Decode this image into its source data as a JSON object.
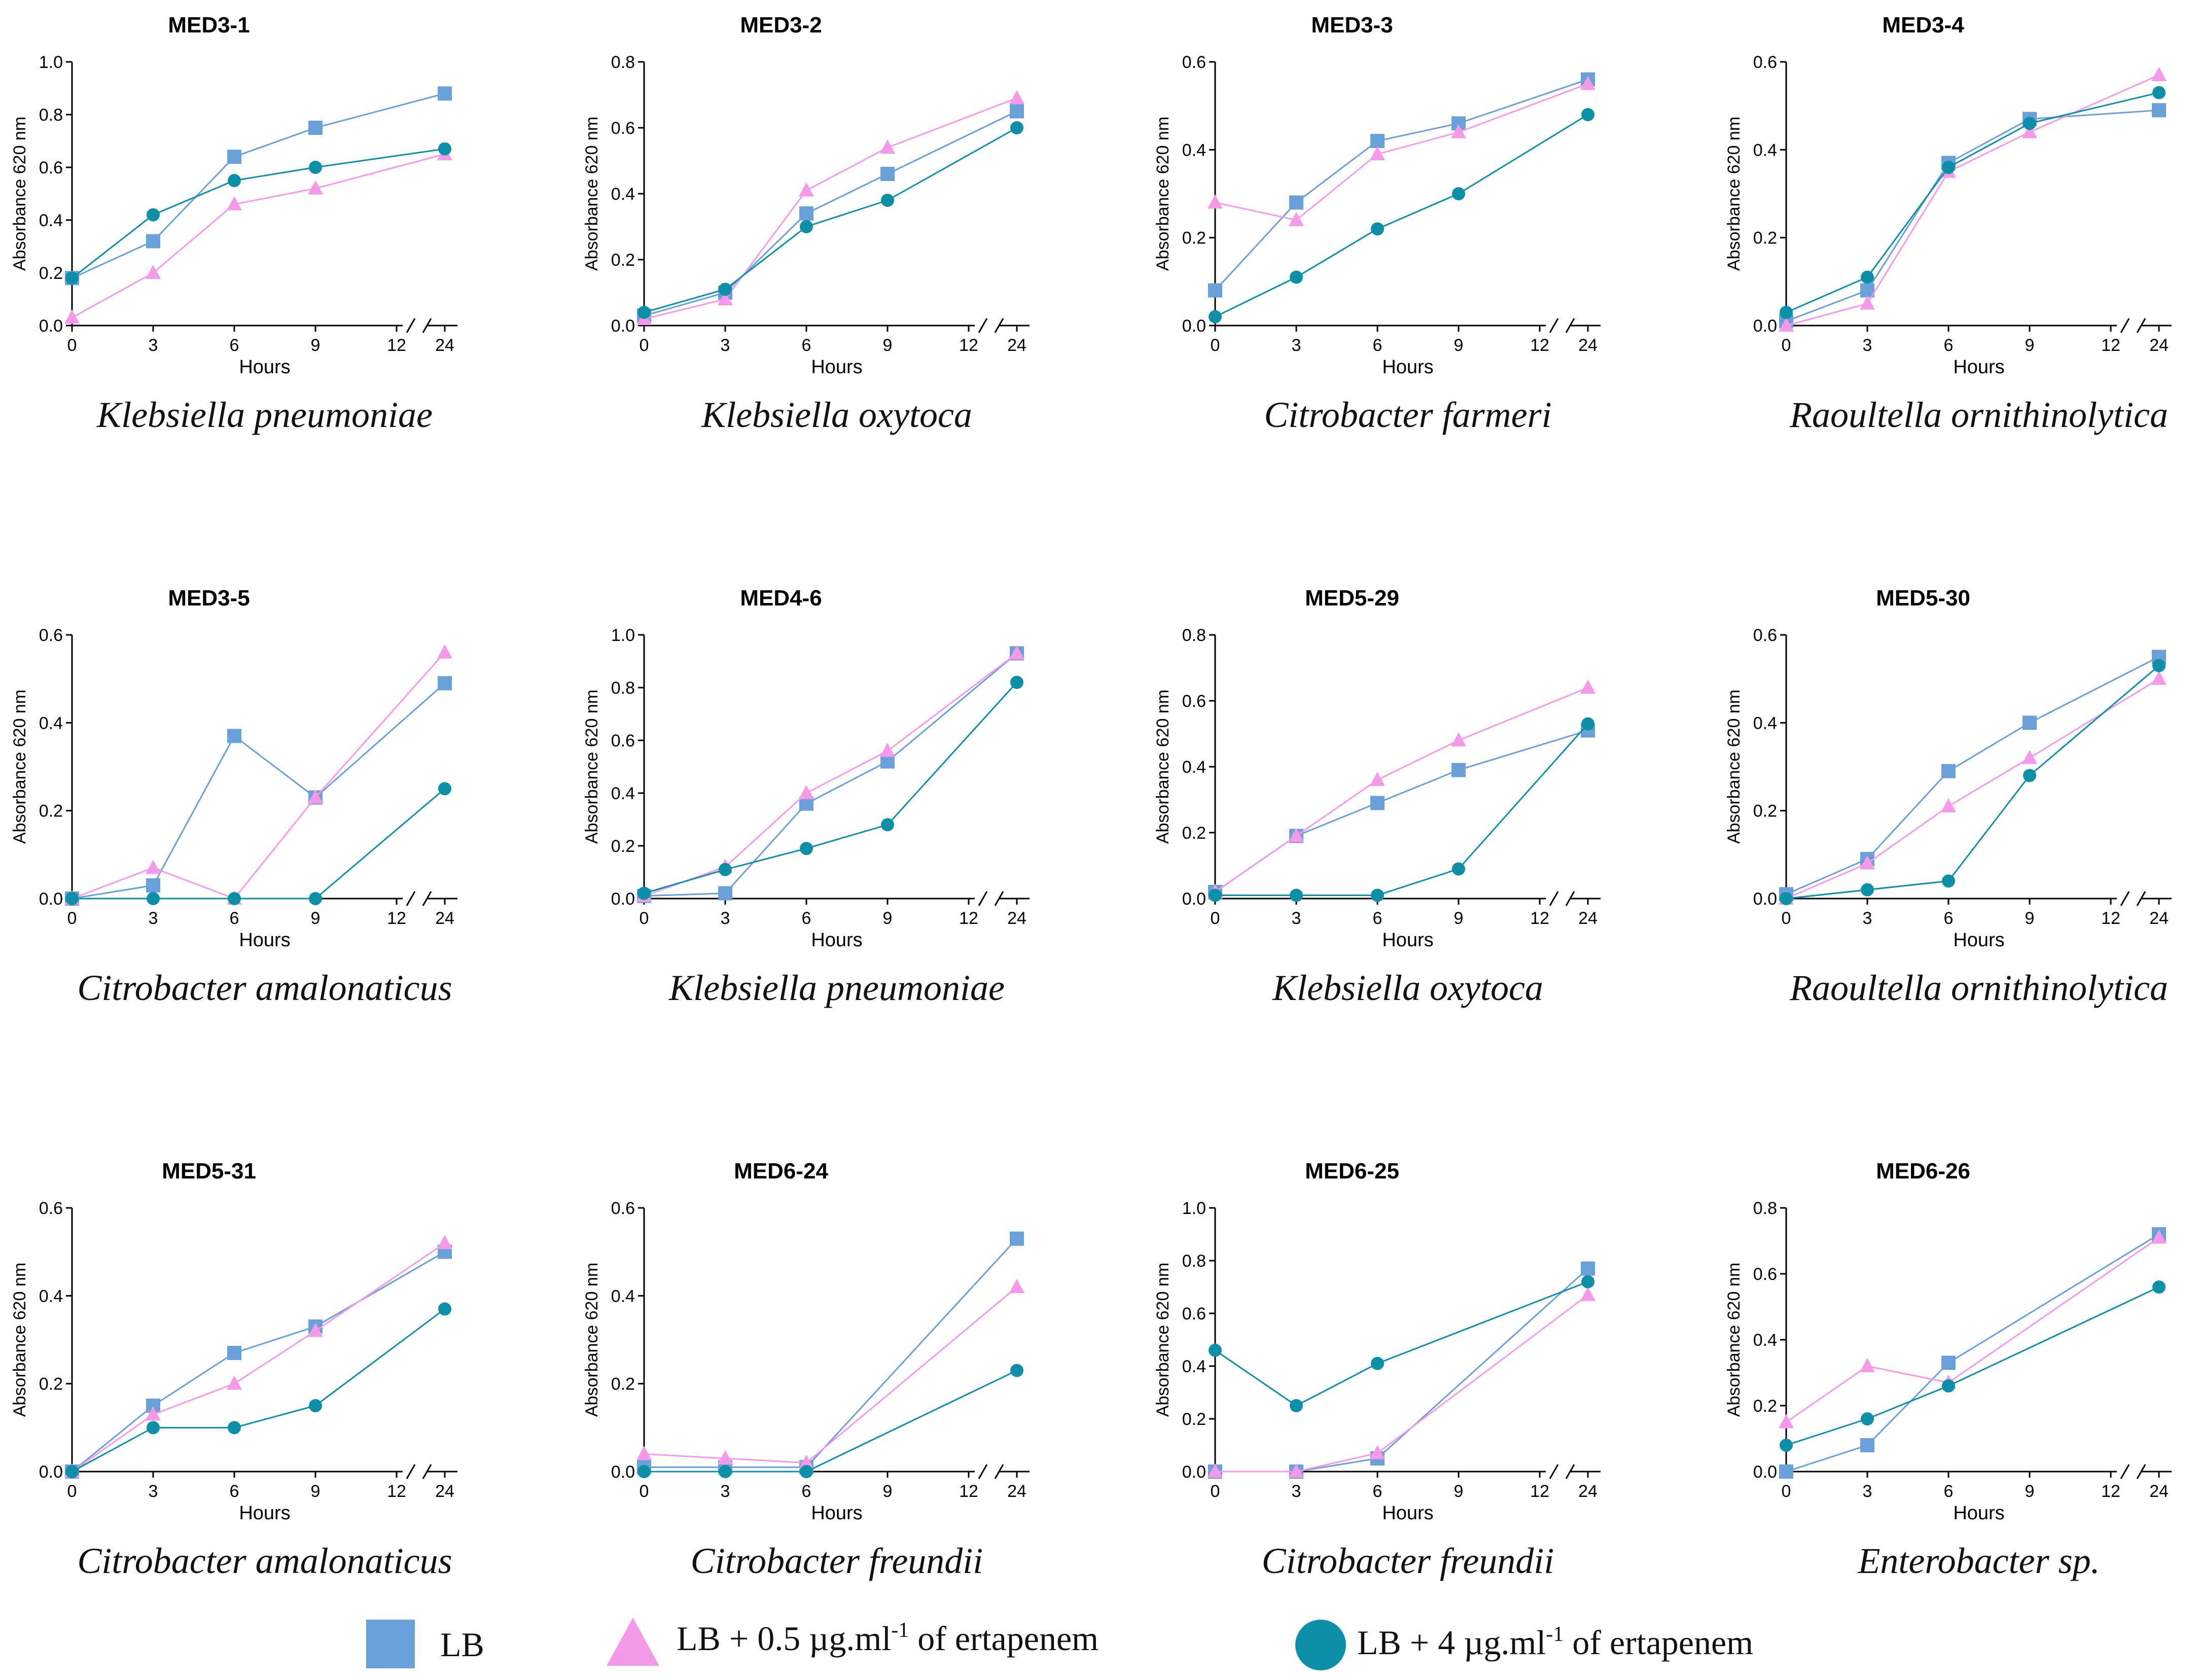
{
  "chart_data": [
    {
      "type": "line",
      "title": "MED3-1",
      "species": "Klebsiella pneumoniae",
      "xlabel": "Hours",
      "ylabel": "Absorbance 620 nm",
      "ylim": [
        0,
        1.0
      ],
      "yticks": [
        "0.0",
        "0.2",
        "0.4",
        "0.6",
        "0.8",
        "1.0"
      ],
      "x": [
        0,
        3,
        6,
        9,
        12,
        24
      ],
      "xticks": [
        "0",
        "3",
        "6",
        "9",
        "12",
        "24"
      ],
      "series": [
        {
          "name": "LB",
          "values": [
            0.18,
            0.32,
            0.64,
            0.75,
            null,
            0.88
          ]
        },
        {
          "name": "LB + 0.5 µg.ml-1 of ertapenem",
          "values": [
            0.03,
            0.2,
            0.46,
            0.52,
            null,
            0.65
          ]
        },
        {
          "name": "LB + 4 µg.ml-1 of ertapenem",
          "values": [
            0.18,
            0.42,
            0.55,
            0.6,
            null,
            0.67
          ]
        }
      ]
    },
    {
      "type": "line",
      "title": "MED3-2",
      "species": "Klebsiella oxytoca",
      "xlabel": "Hours",
      "ylabel": "Absorbance 620 nm",
      "ylim": [
        0,
        0.8
      ],
      "yticks": [
        "0.0",
        "0.2",
        "0.4",
        "0.6",
        "0.8"
      ],
      "x": [
        0,
        3,
        6,
        9,
        12,
        24
      ],
      "xticks": [
        "0",
        "3",
        "6",
        "9",
        "12",
        "24"
      ],
      "series": [
        {
          "name": "LB",
          "values": [
            0.03,
            0.1,
            0.34,
            0.46,
            null,
            0.65
          ]
        },
        {
          "name": "LB + 0.5 µg.ml-1 of ertapenem",
          "values": [
            0.02,
            0.08,
            0.41,
            0.54,
            null,
            0.69
          ]
        },
        {
          "name": "LB + 4 µg.ml-1 of ertapenem",
          "values": [
            0.04,
            0.11,
            0.3,
            0.38,
            null,
            0.6
          ]
        }
      ]
    },
    {
      "type": "line",
      "title": "MED3-3",
      "species": "Citrobacter farmeri",
      "xlabel": "Hours",
      "ylabel": "Absorbance 620 nm",
      "ylim": [
        0,
        0.6
      ],
      "yticks": [
        "0.0",
        "0.2",
        "0.4",
        "0.6"
      ],
      "x": [
        0,
        3,
        6,
        9,
        12,
        24
      ],
      "xticks": [
        "0",
        "3",
        "6",
        "9",
        "12",
        "24"
      ],
      "series": [
        {
          "name": "LB",
          "values": [
            0.08,
            0.28,
            0.42,
            0.46,
            null,
            0.56
          ]
        },
        {
          "name": "LB + 0.5 µg.ml-1 of ertapenem",
          "values": [
            0.28,
            0.24,
            0.39,
            0.44,
            null,
            0.55
          ]
        },
        {
          "name": "LB + 4 µg.ml-1 of ertapenem",
          "values": [
            0.02,
            0.11,
            0.22,
            0.3,
            null,
            0.48
          ]
        }
      ]
    },
    {
      "type": "line",
      "title": "MED3-4",
      "species": "Raoultella ornithinolytica",
      "xlabel": "Hours",
      "ylabel": "Absorbance 620 nm",
      "ylim": [
        0,
        0.6
      ],
      "yticks": [
        "0.0",
        "0.2",
        "0.4",
        "0.6"
      ],
      "x": [
        0,
        3,
        6,
        9,
        12,
        24
      ],
      "xticks": [
        "0",
        "3",
        "6",
        "9",
        "12",
        "24"
      ],
      "series": [
        {
          "name": "LB",
          "values": [
            0.01,
            0.08,
            0.37,
            0.47,
            null,
            0.49
          ]
        },
        {
          "name": "LB + 0.5 µg.ml-1 of ertapenem",
          "values": [
            0.0,
            0.05,
            0.35,
            0.44,
            null,
            0.57
          ]
        },
        {
          "name": "LB + 4 µg.ml-1 of ertapenem",
          "values": [
            0.03,
            0.11,
            0.36,
            0.46,
            null,
            0.53
          ]
        }
      ]
    },
    {
      "type": "line",
      "title": "MED3-5",
      "species": "Citrobacter amalonaticus",
      "xlabel": "Hours",
      "ylabel": "Absorbance 620 nm",
      "ylim": [
        0,
        0.6
      ],
      "yticks": [
        "0.0",
        "0.2",
        "0.4",
        "0.6"
      ],
      "x": [
        0,
        3,
        6,
        9,
        12,
        24
      ],
      "xticks": [
        "0",
        "3",
        "6",
        "9",
        "12",
        "24"
      ],
      "series": [
        {
          "name": "LB",
          "values": [
            0.0,
            0.03,
            0.37,
            0.23,
            null,
            0.49
          ]
        },
        {
          "name": "LB + 0.5 µg.ml-1 of ertapenem",
          "values": [
            0.0,
            0.07,
            0.0,
            0.23,
            null,
            0.56
          ]
        },
        {
          "name": "LB + 4 µg.ml-1 of ertapenem",
          "values": [
            0.0,
            0.0,
            0.0,
            0.0,
            null,
            0.25
          ]
        }
      ]
    },
    {
      "type": "line",
      "title": "MED4-6",
      "species": "Klebsiella pneumoniae",
      "xlabel": "Hours",
      "ylabel": "Absorbance 620 nm",
      "ylim": [
        0,
        1.0
      ],
      "yticks": [
        "0.0",
        "0.2",
        "0.4",
        "0.6",
        "0.8",
        "1.0"
      ],
      "x": [
        0,
        3,
        6,
        9,
        12,
        24
      ],
      "xticks": [
        "0",
        "3",
        "6",
        "9",
        "12",
        "24"
      ],
      "series": [
        {
          "name": "LB",
          "values": [
            0.01,
            0.02,
            0.36,
            0.52,
            null,
            0.93
          ]
        },
        {
          "name": "LB + 0.5 µg.ml-1 of ertapenem",
          "values": [
            0.01,
            0.12,
            0.4,
            0.56,
            null,
            0.93
          ]
        },
        {
          "name": "LB + 4 µg.ml-1 of ertapenem",
          "values": [
            0.02,
            0.11,
            0.19,
            0.28,
            null,
            0.82
          ]
        }
      ]
    },
    {
      "type": "line",
      "title": "MED5-29",
      "species": "Klebsiella oxytoca",
      "xlabel": "Hours",
      "ylabel": "Absorbance 620 nm",
      "ylim": [
        0,
        0.8
      ],
      "yticks": [
        "0.0",
        "0.2",
        "0.4",
        "0.6",
        "0.8"
      ],
      "x": [
        0,
        3,
        6,
        9,
        12,
        24
      ],
      "xticks": [
        "0",
        "3",
        "6",
        "9",
        "12",
        "24"
      ],
      "series": [
        {
          "name": "LB",
          "values": [
            0.02,
            0.19,
            0.29,
            0.39,
            null,
            0.51
          ]
        },
        {
          "name": "LB + 0.5 µg.ml-1 of ertapenem",
          "values": [
            0.02,
            0.19,
            0.36,
            0.48,
            null,
            0.64
          ]
        },
        {
          "name": "LB + 4 µg.ml-1 of ertapenem",
          "values": [
            0.01,
            0.01,
            0.01,
            0.09,
            null,
            0.53
          ]
        }
      ]
    },
    {
      "type": "line",
      "title": "MED5-30",
      "species": "Raoultella ornithinolytica",
      "xlabel": "Hours",
      "ylabel": "Absorbance 620 nm",
      "ylim": [
        0,
        0.6
      ],
      "yticks": [
        "0.0",
        "0.2",
        "0.4",
        "0.6"
      ],
      "x": [
        0,
        3,
        6,
        9,
        12,
        24
      ],
      "xticks": [
        "0",
        "3",
        "6",
        "9",
        "12",
        "24"
      ],
      "series": [
        {
          "name": "LB",
          "values": [
            0.01,
            0.09,
            0.29,
            0.4,
            null,
            0.55
          ]
        },
        {
          "name": "LB + 0.5 µg.ml-1 of ertapenem",
          "values": [
            0.0,
            0.08,
            0.21,
            0.32,
            null,
            0.5
          ]
        },
        {
          "name": "LB + 4 µg.ml-1 of ertapenem",
          "values": [
            0.0,
            0.02,
            0.04,
            0.28,
            null,
            0.53
          ]
        }
      ]
    },
    {
      "type": "line",
      "title": "MED5-31",
      "species": "Citrobacter amalonaticus",
      "xlabel": "Hours",
      "ylabel": "Absorbance 620 nm",
      "ylim": [
        0,
        0.6
      ],
      "yticks": [
        "0.0",
        "0.2",
        "0.4",
        "0.6"
      ],
      "x": [
        0,
        3,
        6,
        9,
        12,
        24
      ],
      "xticks": [
        "0",
        "3",
        "6",
        "9",
        "12",
        "24"
      ],
      "series": [
        {
          "name": "LB",
          "values": [
            0.0,
            0.15,
            0.27,
            0.33,
            null,
            0.5
          ]
        },
        {
          "name": "LB + 0.5 µg.ml-1 of ertapenem",
          "values": [
            0.0,
            0.13,
            0.2,
            0.32,
            null,
            0.52
          ]
        },
        {
          "name": "LB + 4 µg.ml-1 of ertapenem",
          "values": [
            0.0,
            0.1,
            0.1,
            0.15,
            null,
            0.37
          ]
        }
      ]
    },
    {
      "type": "line",
      "title": "MED6-24",
      "species": "Citrobacter freundii",
      "xlabel": "Hours",
      "ylabel": "Absorbance 620 nm",
      "ylim": [
        0,
        0.6
      ],
      "yticks": [
        "0.0",
        "0.2",
        "0.4",
        "0.6"
      ],
      "x": [
        0,
        3,
        6,
        9,
        12,
        24
      ],
      "xticks": [
        "0",
        "3",
        "6",
        "9",
        "12",
        "24"
      ],
      "series": [
        {
          "name": "LB",
          "values": [
            0.01,
            0.01,
            0.01,
            null,
            null,
            0.53
          ]
        },
        {
          "name": "LB + 0.5 µg.ml-1 of ertapenem",
          "values": [
            0.04,
            0.03,
            0.02,
            null,
            null,
            0.42
          ]
        },
        {
          "name": "LB + 4 µg.ml-1 of ertapenem",
          "values": [
            0.0,
            0.0,
            0.0,
            null,
            null,
            0.23
          ]
        }
      ]
    },
    {
      "type": "line",
      "title": "MED6-25",
      "species": "Citrobacter freundii",
      "xlabel": "Hours",
      "ylabel": "Absorbance 620 nm",
      "ylim": [
        0,
        1.0
      ],
      "yticks": [
        "0.0",
        "0.2",
        "0.4",
        "0.6",
        "0.8",
        "1.0"
      ],
      "x": [
        0,
        3,
        6,
        9,
        12,
        24
      ],
      "xticks": [
        "0",
        "3",
        "6",
        "9",
        "12",
        "24"
      ],
      "series": [
        {
          "name": "LB",
          "values": [
            0.0,
            0.0,
            0.05,
            null,
            null,
            0.77
          ]
        },
        {
          "name": "LB + 0.5 µg.ml-1 of ertapenem",
          "values": [
            0.0,
            0.0,
            0.07,
            null,
            null,
            0.67
          ]
        },
        {
          "name": "LB + 4 µg.ml-1 of ertapenem",
          "values": [
            0.46,
            0.25,
            0.41,
            null,
            null,
            0.72
          ]
        }
      ]
    },
    {
      "type": "line",
      "title": "MED6-26",
      "species": "Enterobacter sp.",
      "xlabel": "Hours",
      "ylabel": "Absorbance 620 nm",
      "ylim": [
        0,
        0.8
      ],
      "yticks": [
        "0.0",
        "0.2",
        "0.4",
        "0.6",
        "0.8"
      ],
      "x": [
        0,
        3,
        6,
        9,
        12,
        24
      ],
      "xticks": [
        "0",
        "3",
        "6",
        "9",
        "12",
        "24"
      ],
      "series": [
        {
          "name": "LB",
          "values": [
            0.0,
            0.08,
            0.33,
            null,
            null,
            0.72
          ]
        },
        {
          "name": "LB + 0.5 µg.ml-1 of ertapenem",
          "values": [
            0.15,
            0.32,
            0.27,
            null,
            null,
            0.71
          ]
        },
        {
          "name": "LB + 4 µg.ml-1 of ertapenem",
          "values": [
            0.08,
            0.16,
            0.26,
            null,
            null,
            0.56
          ]
        }
      ]
    }
  ],
  "legend": {
    "items": [
      {
        "marker": "square",
        "label": "LB",
        "sup": ""
      },
      {
        "marker": "triangle",
        "label": "LB + 0.5 µg.ml",
        "sup": "-1",
        "suffix": " of ertapenem"
      },
      {
        "marker": "circle",
        "label": "LB + 4 µg.ml",
        "sup": "-1",
        "suffix": " of ertapenem"
      }
    ]
  },
  "colors": {
    "LB": "#6a9fd8",
    "LB + 0.5 µg.ml-1 of ertapenem": "#f59ae8",
    "LB + 4 µg.ml-1 of ertapenem": "#0e8fa8",
    "axis": "#000000"
  }
}
